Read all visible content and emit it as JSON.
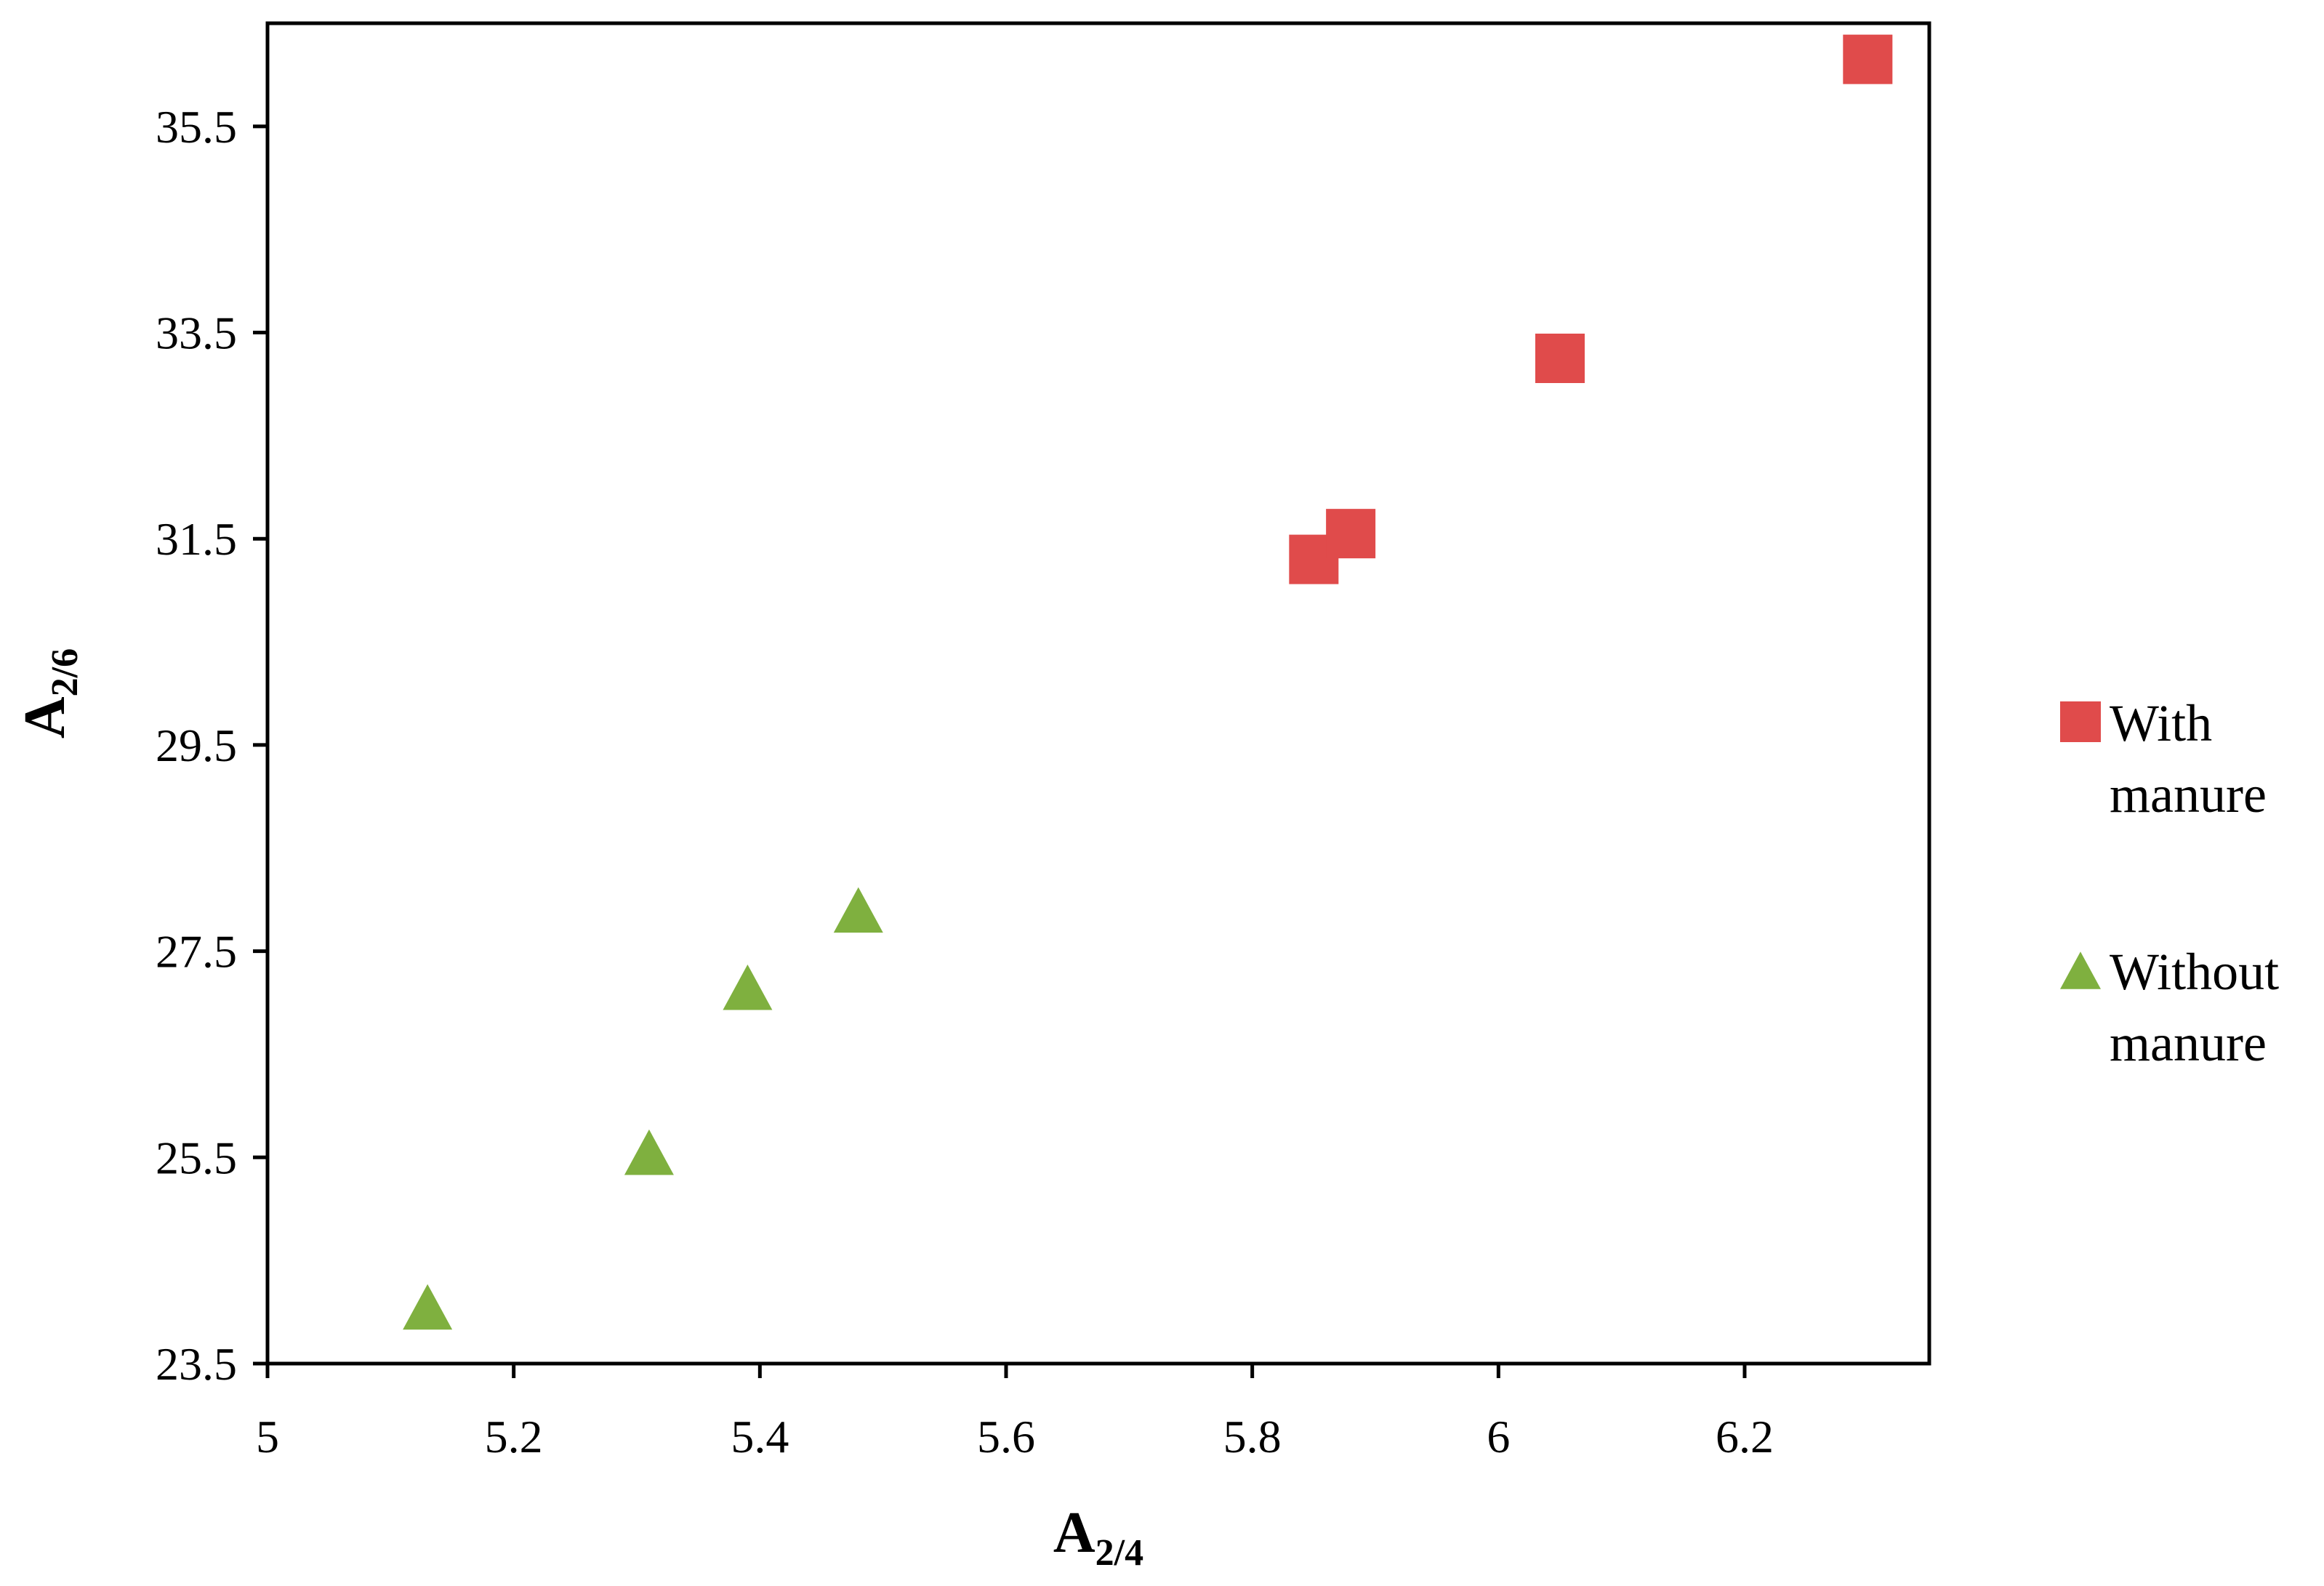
{
  "chart_data": {
    "type": "scatter",
    "xlabel": {
      "main": "A",
      "sub": "2/4"
    },
    "ylabel": {
      "main": "A",
      "sub": "2/6"
    },
    "xlim": [
      5,
      6.35
    ],
    "ylim": [
      23.5,
      36.5
    ],
    "xticks": [
      "5",
      "5.2",
      "5.4",
      "5.6",
      "5.8",
      "6",
      "6.2"
    ],
    "yticks": [
      "23.5",
      "25.5",
      "27.5",
      "29.5",
      "31.5",
      "33.5",
      "35.5"
    ],
    "grid": false,
    "legend_position": "right",
    "series": [
      {
        "name_lines": [
          "With",
          "manure"
        ],
        "marker": "square",
        "color": "#e04b4b",
        "points": [
          {
            "x": 5.85,
            "y": 31.3
          },
          {
            "x": 5.88,
            "y": 31.55
          },
          {
            "x": 6.05,
            "y": 33.25
          },
          {
            "x": 6.3,
            "y": 36.15
          }
        ]
      },
      {
        "name_lines": [
          "Without",
          "manure"
        ],
        "marker": "triangle",
        "color": "#7fb03f",
        "points": [
          {
            "x": 5.13,
            "y": 24.05
          },
          {
            "x": 5.31,
            "y": 25.55
          },
          {
            "x": 5.39,
            "y": 27.15
          },
          {
            "x": 5.48,
            "y": 27.9
          }
        ]
      }
    ]
  }
}
